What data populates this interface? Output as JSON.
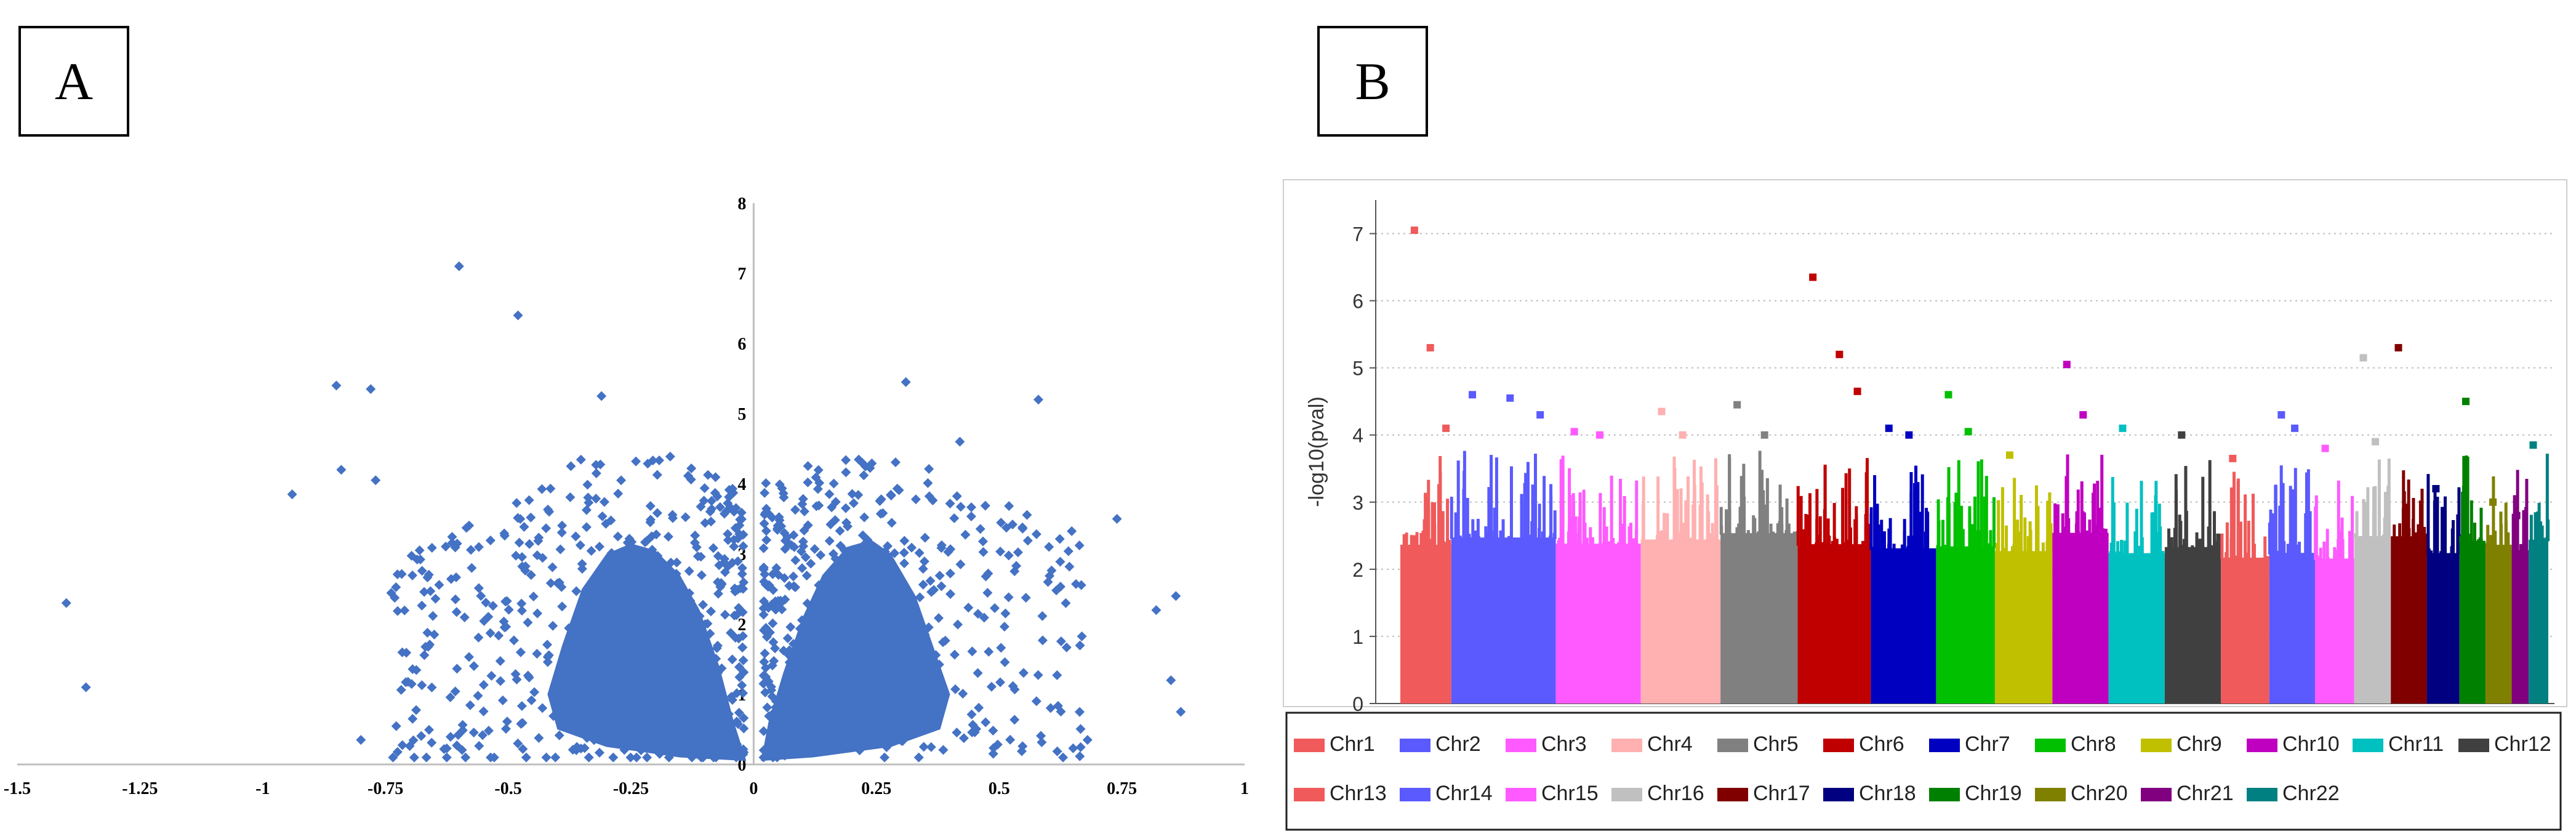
{
  "panels": {
    "a_label": "A",
    "b_label": "B"
  },
  "chart_data": [
    {
      "type": "scatter",
      "panel": "A",
      "title": "",
      "xlabel": "",
      "ylabel": "",
      "xlim": [
        -1.5,
        1
      ],
      "ylim": [
        0,
        8
      ],
      "x_ticks": [
        -1.5,
        -1.25,
        -1,
        -0.75,
        -0.5,
        -0.25,
        0,
        0.25,
        0.5,
        0.75,
        1
      ],
      "y_ticks": [
        0,
        1,
        2,
        3,
        4,
        5,
        6,
        7,
        8
      ],
      "marker": "diamond",
      "point_color": "#4472C4",
      "grid": false,
      "outlier_points": [
        {
          "x": -1.4,
          "y": 2.3
        },
        {
          "x": -1.36,
          "y": 1.1
        },
        {
          "x": -0.94,
          "y": 3.85
        },
        {
          "x": -0.85,
          "y": 5.4
        },
        {
          "x": -0.84,
          "y": 4.2
        },
        {
          "x": -0.78,
          "y": 5.35
        },
        {
          "x": -0.77,
          "y": 4.05
        },
        {
          "x": -0.8,
          "y": 0.35
        },
        {
          "x": -0.6,
          "y": 7.1
        },
        {
          "x": -0.48,
          "y": 6.4
        },
        {
          "x": -0.31,
          "y": 5.25
        },
        {
          "x": 0.31,
          "y": 5.45
        },
        {
          "x": 0.42,
          "y": 4.6
        },
        {
          "x": 0.58,
          "y": 5.2
        },
        {
          "x": 0.74,
          "y": 3.5
        },
        {
          "x": 0.82,
          "y": 2.2
        },
        {
          "x": 0.86,
          "y": 2.4
        },
        {
          "x": 0.85,
          "y": 1.2
        },
        {
          "x": 0.87,
          "y": 0.75
        },
        {
          "x": 0.68,
          "y": 0.35
        },
        {
          "x": -0.36,
          "y": 0.25
        }
      ]
    },
    {
      "type": "scatter",
      "panel": "B",
      "title": "",
      "xlabel": "",
      "ylabel": "-log10(pval)",
      "ylim": [
        0,
        7.5
      ],
      "y_ticks": [
        0,
        1,
        2,
        3,
        4,
        5,
        6,
        7
      ],
      "grid": "horizontal-dotted",
      "legend_position": "bottom",
      "series": [
        {
          "name": "Chr1",
          "color": "#F05A5A",
          "top_hits": [
            7.05,
            5.3,
            4.1
          ]
        },
        {
          "name": "Chr2",
          "color": "#5A5AFF",
          "top_hits": [
            4.6,
            4.55,
            4.3
          ]
        },
        {
          "name": "Chr3",
          "color": "#FF5AFF",
          "top_hits": [
            4.05,
            4.0
          ]
        },
        {
          "name": "Chr4",
          "color": "#FFB0B0",
          "top_hits": [
            4.35,
            4.0
          ]
        },
        {
          "name": "Chr5",
          "color": "#808080",
          "top_hits": [
            4.45,
            4.0
          ]
        },
        {
          "name": "Chr6",
          "color": "#C00000",
          "top_hits": [
            6.35,
            5.2,
            4.65
          ]
        },
        {
          "name": "Chr7",
          "color": "#0000C0",
          "top_hits": [
            4.1,
            4.0
          ]
        },
        {
          "name": "Chr8",
          "color": "#00C000",
          "top_hits": [
            4.6,
            4.05
          ]
        },
        {
          "name": "Chr9",
          "color": "#C0C000",
          "top_hits": [
            3.7
          ]
        },
        {
          "name": "Chr10",
          "color": "#C000C0",
          "top_hits": [
            5.05,
            4.3
          ]
        },
        {
          "name": "Chr11",
          "color": "#00C0C0",
          "top_hits": [
            4.1
          ]
        },
        {
          "name": "Chr12",
          "color": "#404040",
          "top_hits": [
            4.0
          ]
        },
        {
          "name": "Chr13",
          "color": "#F05A5A",
          "top_hits": [
            3.65
          ]
        },
        {
          "name": "Chr14",
          "color": "#5A5AFF",
          "top_hits": [
            4.3,
            4.1
          ]
        },
        {
          "name": "Chr15",
          "color": "#FF5AFF",
          "top_hits": [
            3.8
          ]
        },
        {
          "name": "Chr16",
          "color": "#C0C0C0",
          "top_hits": [
            5.15,
            3.9
          ]
        },
        {
          "name": "Chr17",
          "color": "#800000",
          "top_hits": [
            5.3
          ]
        },
        {
          "name": "Chr18",
          "color": "#000080",
          "top_hits": [
            3.2
          ]
        },
        {
          "name": "Chr19",
          "color": "#008000",
          "top_hits": [
            4.5
          ]
        },
        {
          "name": "Chr20",
          "color": "#808000",
          "top_hits": [
            3.0
          ]
        },
        {
          "name": "Chr21",
          "color": "#800080",
          "top_hits": [
            2.8
          ]
        },
        {
          "name": "Chr22",
          "color": "#008080",
          "top_hits": [
            3.85
          ]
        }
      ]
    }
  ]
}
